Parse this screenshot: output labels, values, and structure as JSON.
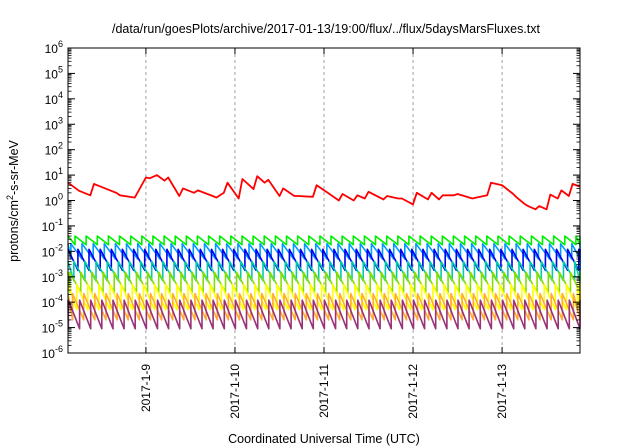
{
  "chart_data": {
    "type": "line",
    "title": "/data/run/goesPlots/archive/2017-01-13/19:00/flux/../flux/5daysMarsFluxes.txt",
    "xlabel": "Coordinated Universal Time (UTC)",
    "ylabel": {
      "prefix": "protons/cm",
      "superscript": "2",
      "suffix": "-s-sr-MeV"
    },
    "yscale": "log",
    "ylim_exponents": [
      -6,
      6
    ],
    "y_tick_labels": [
      {
        "base": "10",
        "exp": "6"
      },
      {
        "base": "10",
        "exp": "5"
      },
      {
        "base": "10",
        "exp": "4"
      },
      {
        "base": "10",
        "exp": "3"
      },
      {
        "base": "10",
        "exp": "2"
      },
      {
        "base": "10",
        "exp": "1"
      },
      {
        "base": "10",
        "exp": "0"
      },
      {
        "base": "10",
        "exp": "-1"
      },
      {
        "base": "10",
        "exp": "-2"
      },
      {
        "base": "10",
        "exp": "-3"
      },
      {
        "base": "10",
        "exp": "-4"
      },
      {
        "base": "10",
        "exp": "-5"
      },
      {
        "base": "10",
        "exp": "-6"
      }
    ],
    "xlim": [
      "2017-01-08 03:00",
      "2017-01-13 21:00"
    ],
    "x_ticks": [
      {
        "x": "2017-01-09 00:00",
        "label": "2017-1-9"
      },
      {
        "x": "2017-01-10 00:00",
        "label": "2017-1-10"
      },
      {
        "x": "2017-01-11 00:00",
        "label": "2017-1-11"
      },
      {
        "x": "2017-01-12 00:00",
        "label": "2017-1-12"
      },
      {
        "x": "2017-01-13 00:00",
        "label": "2017-1-13"
      }
    ],
    "grid": "x-dashed",
    "legend": "none",
    "series": [
      {
        "color": "#ff0000",
        "x": [
          "2017-01-08 03:00",
          "2017-01-08 06:00",
          "2017-01-08 09:00",
          "2017-01-08 10:00",
          "2017-01-08 16:00",
          "2017-01-08 17:00",
          "2017-01-08 21:00",
          "2017-01-09 00:00",
          "2017-01-09 01:00",
          "2017-01-09 03:00",
          "2017-01-09 05:00",
          "2017-01-09 06:00",
          "2017-01-09 09:00",
          "2017-01-09 10:00",
          "2017-01-09 13:00",
          "2017-01-09 14:00",
          "2017-01-09 18:00",
          "2017-01-09 19:00",
          "2017-01-09 21:00",
          "2017-01-09 22:00",
          "2017-01-10 01:00",
          "2017-01-10 02:00",
          "2017-01-10 05:00",
          "2017-01-10 06:00",
          "2017-01-10 08:00",
          "2017-01-10 09:00",
          "2017-01-10 12:00",
          "2017-01-10 13:00",
          "2017-01-10 16:00",
          "2017-01-10 17:00",
          "2017-01-10 21:00",
          "2017-01-10 22:00",
          "2017-01-11 01:00",
          "2017-01-11 04:00",
          "2017-01-11 05:00",
          "2017-01-11 08:00",
          "2017-01-11 09:00",
          "2017-01-11 11:00",
          "2017-01-11 12:00",
          "2017-01-11 16:00",
          "2017-01-11 17:00",
          "2017-01-11 20:00",
          "2017-01-11 21:00",
          "2017-01-12 00:00",
          "2017-01-12 01:00",
          "2017-01-12 04:00",
          "2017-01-12 05:00",
          "2017-01-12 07:00",
          "2017-01-12 08:00",
          "2017-01-12 11:00",
          "2017-01-12 12:00",
          "2017-01-12 16:00",
          "2017-01-12 17:00",
          "2017-01-12 20:00",
          "2017-01-12 21:00",
          "2017-01-13 00:00",
          "2017-01-13 03:00",
          "2017-01-13 04:00",
          "2017-01-13 06:00",
          "2017-01-13 07:00",
          "2017-01-13 09:00",
          "2017-01-13 10:00",
          "2017-01-13 12:00",
          "2017-01-13 13:00",
          "2017-01-13 15:00",
          "2017-01-13 16:00",
          "2017-01-13 18:00",
          "2017-01-13 19:00",
          "2017-01-13 21:00"
        ],
        "y": [
          5,
          2.4,
          1.6,
          4.5,
          2,
          1.6,
          1.3,
          8,
          7.5,
          10,
          6,
          8,
          1.5,
          3,
          2,
          2.5,
          1.5,
          1.3,
          2,
          5,
          1.2,
          7,
          2.8,
          9,
          5,
          6.5,
          1.5,
          3,
          1.5,
          1.5,
          1.4,
          4,
          2,
          1,
          1.8,
          1,
          1.6,
          1.2,
          2.2,
          1.1,
          1.5,
          1.2,
          1.2,
          0.7,
          2,
          1.1,
          2,
          1.1,
          1.6,
          1.6,
          1.8,
          1.2,
          1.3,
          1.6,
          5,
          4,
          1.8,
          1.3,
          0.75,
          0.6,
          0.45,
          0.6,
          0.45,
          1.7,
          1.2,
          2.5,
          1.5,
          4.5,
          3.5
        ]
      },
      {
        "color": "#00ee00",
        "min": 0.018,
        "max": 0.04
      },
      {
        "color": "#0099ff",
        "min": 0.005,
        "max": 0.02
      },
      {
        "color": "#0000ee",
        "min": 0.0018,
        "max": 0.012
      },
      {
        "color": "#00ccaa",
        "min": 0.0007,
        "max": 0.004
      },
      {
        "color": "#88dd00",
        "min": 0.00025,
        "max": 0.0015
      },
      {
        "color": "#ffff00",
        "min": 5e-05,
        "max": 0.0005
      },
      {
        "color": "#ffaa33",
        "min": 2e-05,
        "max": 0.00022
      },
      {
        "color": "#993377",
        "min": 9e-06,
        "max": 0.00012
      }
    ]
  }
}
